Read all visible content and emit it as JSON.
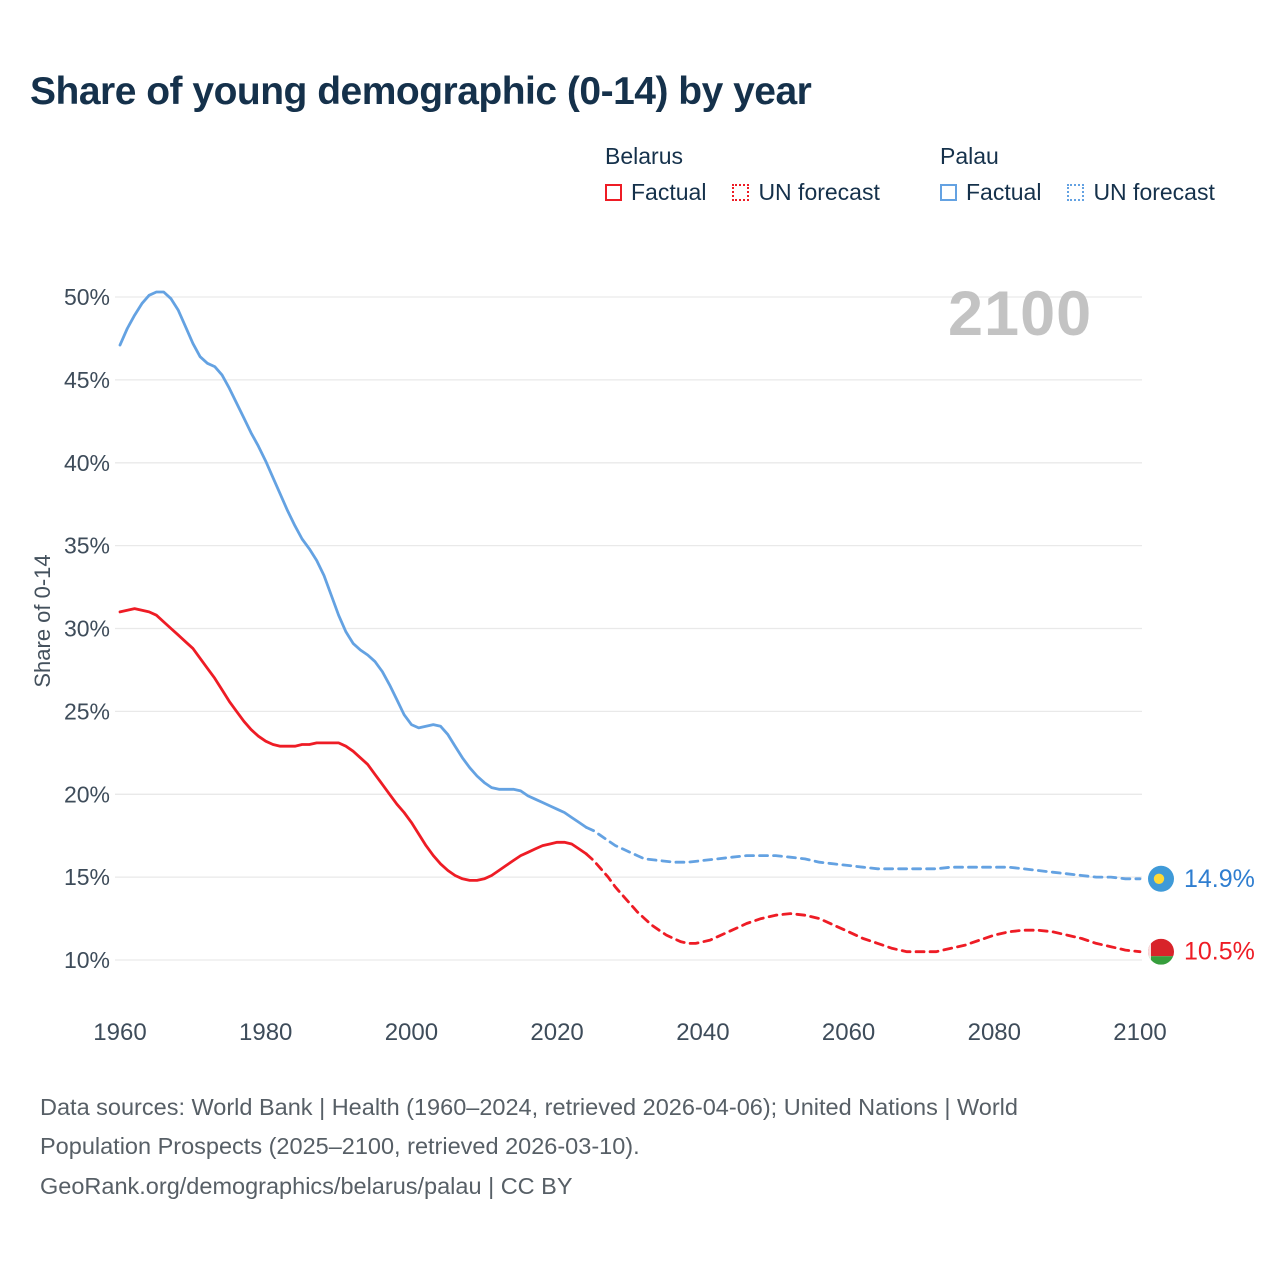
{
  "title": "Share of young demographic (0-14) by year",
  "watermark": "2100",
  "legend": {
    "groups": [
      {
        "country": "Belarus",
        "color": "#ee1c25",
        "items": [
          {
            "label": "Factual",
            "style": "solid"
          },
          {
            "label": "UN forecast",
            "style": "dotted"
          }
        ]
      },
      {
        "country": "Palau",
        "color": "#64a2e2",
        "items": [
          {
            "label": "Factual",
            "style": "solid"
          },
          {
            "label": "UN forecast",
            "style": "dotted"
          }
        ]
      }
    ]
  },
  "chart_data": {
    "type": "line",
    "title": "Share of young demographic (0-14) by year",
    "xlabel": "",
    "ylabel": "Share of 0-14",
    "xlim": [
      1960,
      2100
    ],
    "ylim": [
      10,
      50
    ],
    "grid": "horizontal",
    "yticks": [
      10,
      15,
      20,
      25,
      30,
      35,
      40,
      45,
      50
    ],
    "xticks": [
      1960,
      1980,
      2000,
      2020,
      2040,
      2060,
      2080,
      2100
    ],
    "series": [
      {
        "id": "palau-factual",
        "name": "Palau Factual",
        "color": "#64a2e2",
        "style": "solid",
        "points": [
          [
            1960,
            47.1
          ],
          [
            1961,
            48.1
          ],
          [
            1962,
            48.9
          ],
          [
            1963,
            49.6
          ],
          [
            1964,
            50.1
          ],
          [
            1965,
            50.3
          ],
          [
            1966,
            50.3
          ],
          [
            1967,
            49.9
          ],
          [
            1968,
            49.2
          ],
          [
            1969,
            48.2
          ],
          [
            1970,
            47.2
          ],
          [
            1971,
            46.4
          ],
          [
            1972,
            46.0
          ],
          [
            1973,
            45.8
          ],
          [
            1974,
            45.3
          ],
          [
            1975,
            44.5
          ],
          [
            1976,
            43.6
          ],
          [
            1977,
            42.7
          ],
          [
            1978,
            41.8
          ],
          [
            1979,
            41.0
          ],
          [
            1980,
            40.1
          ],
          [
            1981,
            39.1
          ],
          [
            1982,
            38.1
          ],
          [
            1983,
            37.1
          ],
          [
            1984,
            36.2
          ],
          [
            1985,
            35.4
          ],
          [
            1986,
            34.8
          ],
          [
            1987,
            34.1
          ],
          [
            1988,
            33.2
          ],
          [
            1989,
            32.0
          ],
          [
            1990,
            30.8
          ],
          [
            1991,
            29.8
          ],
          [
            1992,
            29.1
          ],
          [
            1993,
            28.7
          ],
          [
            1994,
            28.4
          ],
          [
            1995,
            28.0
          ],
          [
            1996,
            27.4
          ],
          [
            1997,
            26.6
          ],
          [
            1998,
            25.7
          ],
          [
            1999,
            24.8
          ],
          [
            2000,
            24.2
          ],
          [
            2001,
            24.0
          ],
          [
            2002,
            24.1
          ],
          [
            2003,
            24.2
          ],
          [
            2004,
            24.1
          ],
          [
            2005,
            23.6
          ],
          [
            2006,
            22.9
          ],
          [
            2007,
            22.2
          ],
          [
            2008,
            21.6
          ],
          [
            2009,
            21.1
          ],
          [
            2010,
            20.7
          ],
          [
            2011,
            20.4
          ],
          [
            2012,
            20.3
          ],
          [
            2013,
            20.3
          ],
          [
            2014,
            20.3
          ],
          [
            2015,
            20.2
          ],
          [
            2016,
            19.9
          ],
          [
            2017,
            19.7
          ],
          [
            2018,
            19.5
          ],
          [
            2019,
            19.3
          ],
          [
            2020,
            19.1
          ],
          [
            2021,
            18.9
          ],
          [
            2022,
            18.6
          ],
          [
            2023,
            18.3
          ],
          [
            2024,
            18.0
          ]
        ]
      },
      {
        "id": "palau-forecast",
        "name": "Palau UN forecast",
        "color": "#64a2e2",
        "style": "dashed",
        "points": [
          [
            2024,
            18.0
          ],
          [
            2025,
            17.8
          ],
          [
            2026,
            17.5
          ],
          [
            2027,
            17.2
          ],
          [
            2028,
            16.9
          ],
          [
            2029,
            16.7
          ],
          [
            2030,
            16.5
          ],
          [
            2031,
            16.3
          ],
          [
            2032,
            16.1
          ],
          [
            2034,
            16.0
          ],
          [
            2036,
            15.9
          ],
          [
            2038,
            15.9
          ],
          [
            2040,
            16.0
          ],
          [
            2042,
            16.1
          ],
          [
            2044,
            16.2
          ],
          [
            2046,
            16.3
          ],
          [
            2048,
            16.3
          ],
          [
            2050,
            16.3
          ],
          [
            2052,
            16.2
          ],
          [
            2054,
            16.1
          ],
          [
            2056,
            15.9
          ],
          [
            2058,
            15.8
          ],
          [
            2060,
            15.7
          ],
          [
            2062,
            15.6
          ],
          [
            2064,
            15.5
          ],
          [
            2066,
            15.5
          ],
          [
            2068,
            15.5
          ],
          [
            2070,
            15.5
          ],
          [
            2072,
            15.5
          ],
          [
            2074,
            15.6
          ],
          [
            2076,
            15.6
          ],
          [
            2078,
            15.6
          ],
          [
            2080,
            15.6
          ],
          [
            2082,
            15.6
          ],
          [
            2084,
            15.5
          ],
          [
            2086,
            15.4
          ],
          [
            2088,
            15.3
          ],
          [
            2090,
            15.2
          ],
          [
            2092,
            15.1
          ],
          [
            2094,
            15.0
          ],
          [
            2096,
            15.0
          ],
          [
            2098,
            14.9
          ],
          [
            2100,
            14.9
          ]
        ]
      },
      {
        "id": "belarus-factual",
        "name": "Belarus Factual",
        "color": "#ee1c25",
        "style": "solid",
        "points": [
          [
            1960,
            31.0
          ],
          [
            1961,
            31.1
          ],
          [
            1962,
            31.2
          ],
          [
            1963,
            31.1
          ],
          [
            1964,
            31.0
          ],
          [
            1965,
            30.8
          ],
          [
            1966,
            30.4
          ],
          [
            1967,
            30.0
          ],
          [
            1968,
            29.6
          ],
          [
            1969,
            29.2
          ],
          [
            1970,
            28.8
          ],
          [
            1971,
            28.2
          ],
          [
            1972,
            27.6
          ],
          [
            1973,
            27.0
          ],
          [
            1974,
            26.3
          ],
          [
            1975,
            25.6
          ],
          [
            1976,
            25.0
          ],
          [
            1977,
            24.4
          ],
          [
            1978,
            23.9
          ],
          [
            1979,
            23.5
          ],
          [
            1980,
            23.2
          ],
          [
            1981,
            23.0
          ],
          [
            1982,
            22.9
          ],
          [
            1983,
            22.9
          ],
          [
            1984,
            22.9
          ],
          [
            1985,
            23.0
          ],
          [
            1986,
            23.0
          ],
          [
            1987,
            23.1
          ],
          [
            1988,
            23.1
          ],
          [
            1989,
            23.1
          ],
          [
            1990,
            23.1
          ],
          [
            1991,
            22.9
          ],
          [
            1992,
            22.6
          ],
          [
            1993,
            22.2
          ],
          [
            1994,
            21.8
          ],
          [
            1995,
            21.2
          ],
          [
            1996,
            20.6
          ],
          [
            1997,
            20.0
          ],
          [
            1998,
            19.4
          ],
          [
            1999,
            18.9
          ],
          [
            2000,
            18.3
          ],
          [
            2001,
            17.6
          ],
          [
            2002,
            16.9
          ],
          [
            2003,
            16.3
          ],
          [
            2004,
            15.8
          ],
          [
            2005,
            15.4
          ],
          [
            2006,
            15.1
          ],
          [
            2007,
            14.9
          ],
          [
            2008,
            14.8
          ],
          [
            2009,
            14.8
          ],
          [
            2010,
            14.9
          ],
          [
            2011,
            15.1
          ],
          [
            2012,
            15.4
          ],
          [
            2013,
            15.7
          ],
          [
            2014,
            16.0
          ],
          [
            2015,
            16.3
          ],
          [
            2016,
            16.5
          ],
          [
            2017,
            16.7
          ],
          [
            2018,
            16.9
          ],
          [
            2019,
            17.0
          ],
          [
            2020,
            17.1
          ],
          [
            2021,
            17.1
          ],
          [
            2022,
            17.0
          ],
          [
            2023,
            16.7
          ],
          [
            2024,
            16.4
          ]
        ]
      },
      {
        "id": "belarus-forecast",
        "name": "Belarus UN forecast",
        "color": "#ee1c25",
        "style": "dashed",
        "points": [
          [
            2024,
            16.4
          ],
          [
            2025,
            16.0
          ],
          [
            2026,
            15.5
          ],
          [
            2027,
            15.0
          ],
          [
            2028,
            14.4
          ],
          [
            2029,
            13.9
          ],
          [
            2030,
            13.4
          ],
          [
            2031,
            12.9
          ],
          [
            2032,
            12.5
          ],
          [
            2033,
            12.1
          ],
          [
            2034,
            11.8
          ],
          [
            2035,
            11.5
          ],
          [
            2036,
            11.3
          ],
          [
            2037,
            11.1
          ],
          [
            2038,
            11.0
          ],
          [
            2039,
            11.0
          ],
          [
            2040,
            11.1
          ],
          [
            2041,
            11.2
          ],
          [
            2042,
            11.4
          ],
          [
            2043,
            11.6
          ],
          [
            2044,
            11.8
          ],
          [
            2045,
            12.0
          ],
          [
            2046,
            12.2
          ],
          [
            2048,
            12.5
          ],
          [
            2050,
            12.7
          ],
          [
            2052,
            12.8
          ],
          [
            2054,
            12.7
          ],
          [
            2056,
            12.5
          ],
          [
            2058,
            12.1
          ],
          [
            2060,
            11.7
          ],
          [
            2062,
            11.3
          ],
          [
            2064,
            11.0
          ],
          [
            2066,
            10.7
          ],
          [
            2068,
            10.5
          ],
          [
            2070,
            10.5
          ],
          [
            2072,
            10.5
          ],
          [
            2074,
            10.7
          ],
          [
            2076,
            10.9
          ],
          [
            2078,
            11.2
          ],
          [
            2080,
            11.5
          ],
          [
            2082,
            11.7
          ],
          [
            2084,
            11.8
          ],
          [
            2086,
            11.8
          ],
          [
            2088,
            11.7
          ],
          [
            2090,
            11.5
          ],
          [
            2092,
            11.3
          ],
          [
            2094,
            11.0
          ],
          [
            2096,
            10.8
          ],
          [
            2098,
            10.6
          ],
          [
            2100,
            10.5
          ]
        ]
      }
    ],
    "end_labels": [
      {
        "flag": "palau",
        "text": "14.9%",
        "value": 14.9,
        "color": "#2f7ed0"
      },
      {
        "flag": "belarus",
        "text": "10.5%",
        "value": 10.5,
        "color": "#ee1c25"
      }
    ]
  },
  "footer": {
    "line1": "Data sources: World Bank | Health (1960–2024, retrieved 2026-04-06); United Nations | World",
    "line2": "Population Prospects (2025–2100, retrieved 2026-03-10).",
    "line3": "GeoRank.org/demographics/belarus/palau | CC BY"
  }
}
